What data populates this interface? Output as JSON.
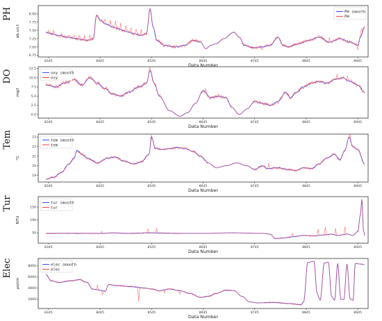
{
  "chart_data": [
    {
      "type": "line",
      "panel_label": "PH",
      "xlabel": "Data Number",
      "ylabel": "ab.un.t",
      "xlim": [
        8325,
        8965
      ],
      "ylim": [
        6.7,
        8.25
      ],
      "xticks": [
        8345,
        8445,
        8545,
        8645,
        8745,
        8845,
        8945
      ],
      "yticks": [
        6.75,
        7.0,
        7.25,
        7.5,
        7.75,
        8.0
      ],
      "ytick_labels": [
        "6.75",
        "7.00",
        "7.25",
        "7.50",
        "7.75",
        "8.00"
      ],
      "legend_position": "top-right",
      "series": [
        {
          "name": "PH smooth",
          "color": "#3a4dff"
        },
        {
          "name": "PH",
          "color": "#ff4444"
        }
      ],
      "anchors": [
        [
          8340,
          7.45
        ],
        [
          8350,
          7.4
        ],
        [
          8365,
          7.35
        ],
        [
          8380,
          7.3
        ],
        [
          8400,
          7.25
        ],
        [
          8420,
          7.2
        ],
        [
          8432,
          7.25
        ],
        [
          8438,
          7.95
        ],
        [
          8446,
          7.8
        ],
        [
          8455,
          7.7
        ],
        [
          8470,
          7.6
        ],
        [
          8480,
          7.55
        ],
        [
          8490,
          7.5
        ],
        [
          8500,
          7.45
        ],
        [
          8510,
          7.4
        ],
        [
          8525,
          7.35
        ],
        [
          8535,
          7.4
        ],
        [
          8542,
          8.15
        ],
        [
          8548,
          7.6
        ],
        [
          8555,
          7.2
        ],
        [
          8570,
          7.05
        ],
        [
          8590,
          7.0
        ],
        [
          8610,
          7.05
        ],
        [
          8625,
          7.2
        ],
        [
          8640,
          7.15
        ],
        [
          8650,
          6.95
        ],
        [
          8660,
          7.05
        ],
        [
          8670,
          7.1
        ],
        [
          8685,
          7.25
        ],
        [
          8705,
          7.45
        ],
        [
          8715,
          7.3
        ],
        [
          8725,
          7.05
        ],
        [
          8740,
          6.98
        ],
        [
          8760,
          7.0
        ],
        [
          8775,
          7.05
        ],
        [
          8790,
          7.3
        ],
        [
          8800,
          7.05
        ],
        [
          8810,
          7.0
        ],
        [
          8830,
          7.1
        ],
        [
          8850,
          7.2
        ],
        [
          8870,
          7.3
        ],
        [
          8890,
          7.15
        ],
        [
          8910,
          7.25
        ],
        [
          8930,
          7.15
        ],
        [
          8945,
          7.05
        ],
        [
          8950,
          7.3
        ],
        [
          8958,
          7.6
        ]
      ],
      "noise": {
        "amplitude": 0.05,
        "spikes": [
          [
            8345,
            0.12
          ],
          [
            8355,
            0.1
          ],
          [
            8370,
            0.1
          ],
          [
            8385,
            0.1
          ],
          [
            8395,
            0.1
          ],
          [
            8405,
            0.12
          ],
          [
            8415,
            0.12
          ],
          [
            8425,
            0.1
          ],
          [
            8455,
            0.15
          ],
          [
            8465,
            0.18
          ],
          [
            8475,
            0.18
          ],
          [
            8485,
            0.18
          ],
          [
            8495,
            0.18
          ],
          [
            8505,
            0.18
          ],
          [
            8515,
            0.18
          ],
          [
            8525,
            0.15
          ],
          [
            8760,
            -0.08
          ],
          [
            8890,
            0.1
          ],
          [
            8945,
            -0.15
          ],
          [
            8952,
            0.25
          ]
        ],
        "quiet": [
          [
            8640,
            8720
          ]
        ]
      }
    },
    {
      "type": "line",
      "panel_label": "DO",
      "xlabel": "Data Number",
      "ylabel": "mg/l",
      "xlim": [
        8325,
        8965
      ],
      "ylim": [
        -1.0,
        13.0
      ],
      "xticks": [
        8345,
        8445,
        8545,
        8645,
        8745,
        8845,
        8945
      ],
      "yticks": [
        0.0,
        2.5,
        5.0,
        7.5,
        10.0,
        12.5
      ],
      "ytick_labels": [
        "0.0",
        "2.5",
        "5.0",
        "7.5",
        "10.0",
        "12.5"
      ],
      "legend_position": "top-left",
      "series": [
        {
          "name": "oxy smooth",
          "color": "#3a4dff"
        },
        {
          "name": "oxy",
          "color": "#ff4444"
        }
      ],
      "anchors": [
        [
          8340,
          8.0
        ],
        [
          8360,
          7.5
        ],
        [
          8375,
          8.5
        ],
        [
          8395,
          9.5
        ],
        [
          8410,
          8.0
        ],
        [
          8425,
          10.0
        ],
        [
          8440,
          8.5
        ],
        [
          8455,
          7.0
        ],
        [
          8470,
          5.5
        ],
        [
          8485,
          5.0
        ],
        [
          8500,
          6.0
        ],
        [
          8520,
          7.5
        ],
        [
          8535,
          8.5
        ],
        [
          8542,
          12.0
        ],
        [
          8550,
          8.5
        ],
        [
          8560,
          5.0
        ],
        [
          8580,
          1.0
        ],
        [
          8600,
          -0.5
        ],
        [
          8615,
          0.5
        ],
        [
          8630,
          3.0
        ],
        [
          8645,
          6.5
        ],
        [
          8660,
          4.5
        ],
        [
          8675,
          5.0
        ],
        [
          8690,
          4.5
        ],
        [
          8700,
          2.0
        ],
        [
          8715,
          0.0
        ],
        [
          8730,
          1.5
        ],
        [
          8745,
          3.5
        ],
        [
          8760,
          3.0
        ],
        [
          8775,
          2.5
        ],
        [
          8790,
          3.5
        ],
        [
          8805,
          6.0
        ],
        [
          8815,
          4.5
        ],
        [
          8825,
          6.0
        ],
        [
          8840,
          7.5
        ],
        [
          8855,
          8.5
        ],
        [
          8870,
          9.0
        ],
        [
          8885,
          8.5
        ],
        [
          8900,
          9.5
        ],
        [
          8915,
          10.0
        ],
        [
          8930,
          9.0
        ],
        [
          8945,
          8.0
        ],
        [
          8958,
          6.0
        ]
      ],
      "noise": {
        "amplitude": 0.5,
        "spikes": [
          [
            8541,
            1.5
          ],
          [
            8650,
            1.2
          ],
          [
            8905,
            1.0
          ],
          [
            8925,
            0.8
          ]
        ],
        "quiet": [
          [
            8565,
            8640
          ],
          [
            8700,
            8740
          ]
        ]
      }
    },
    {
      "type": "line",
      "panel_label": "Tem",
      "xlabel": "Data Number",
      "ylabel": "°C",
      "xlim": [
        8325,
        8965
      ],
      "ylim": [
        18.3,
        23.3
      ],
      "xticks": [
        8345,
        8445,
        8545,
        8645,
        8745,
        8845,
        8945
      ],
      "yticks": [
        19,
        20,
        21,
        22,
        23
      ],
      "ytick_labels": [
        "19",
        "20",
        "21",
        "22",
        "23"
      ],
      "legend_position": "top-left",
      "series": [
        {
          "name": "tem smooth",
          "color": "#3a4dff"
        },
        {
          "name": "tem",
          "color": "#ff4444"
        }
      ],
      "anchors": [
        [
          8340,
          18.6
        ],
        [
          8355,
          18.8
        ],
        [
          8370,
          19.3
        ],
        [
          8385,
          20.2
        ],
        [
          8395,
          20.8
        ],
        [
          8400,
          21.6
        ],
        [
          8410,
          21.2
        ],
        [
          8420,
          20.8
        ],
        [
          8440,
          20.3
        ],
        [
          8460,
          20.8
        ],
        [
          8475,
          20.9
        ],
        [
          8490,
          20.5
        ],
        [
          8510,
          20.2
        ],
        [
          8525,
          20.4
        ],
        [
          8540,
          21.2
        ],
        [
          8545,
          23.0
        ],
        [
          8552,
          21.8
        ],
        [
          8565,
          21.7
        ],
        [
          8580,
          21.8
        ],
        [
          8595,
          21.9
        ],
        [
          8610,
          21.8
        ],
        [
          8625,
          21.5
        ],
        [
          8640,
          21.0
        ],
        [
          8655,
          20.3
        ],
        [
          8670,
          19.8
        ],
        [
          8690,
          20.0
        ],
        [
          8710,
          20.3
        ],
        [
          8730,
          20.0
        ],
        [
          8745,
          19.6
        ],
        [
          8760,
          20.0
        ],
        [
          8770,
          19.7
        ],
        [
          8790,
          19.8
        ],
        [
          8810,
          19.6
        ],
        [
          8825,
          19.5
        ],
        [
          8840,
          19.8
        ],
        [
          8855,
          19.7
        ],
        [
          8870,
          20.2
        ],
        [
          8885,
          20.8
        ],
        [
          8900,
          21.2
        ],
        [
          8910,
          20.6
        ],
        [
          8920,
          21.6
        ],
        [
          8928,
          23.0
        ],
        [
          8935,
          22.0
        ],
        [
          8945,
          21.7
        ],
        [
          8958,
          20.2
        ]
      ],
      "noise": {
        "amplitude": 0.12,
        "spikes": [
          [
            8544,
            0.4
          ],
          [
            8772,
            0.5
          ],
          [
            8930,
            0.4
          ]
        ],
        "quiet": [
          [
            8655,
            8740
          ]
        ]
      }
    },
    {
      "type": "line",
      "panel_label": "Tur",
      "xlabel": "Data Number",
      "ylabel": "NTU",
      "xlim": [
        8325,
        8965
      ],
      "ylim": [
        10,
        190
      ],
      "xticks": [
        8345,
        8445,
        8545,
        8645,
        8745,
        8845,
        8945
      ],
      "yticks": [
        50,
        100,
        150
      ],
      "ytick_labels": [
        "50",
        "100",
        "150"
      ],
      "legend_position": "top-left",
      "series": [
        {
          "name": "tur smooth",
          "color": "#3a4dff"
        },
        {
          "name": "tur",
          "color": "#ff4444"
        }
      ],
      "anchors": [
        [
          8340,
          48
        ],
        [
          8400,
          48
        ],
        [
          8450,
          48
        ],
        [
          8470,
          50
        ],
        [
          8500,
          48
        ],
        [
          8540,
          50
        ],
        [
          8600,
          48
        ],
        [
          8650,
          48
        ],
        [
          8700,
          50
        ],
        [
          8760,
          48
        ],
        [
          8775,
          45
        ],
        [
          8785,
          28
        ],
        [
          8800,
          30
        ],
        [
          8820,
          35
        ],
        [
          8840,
          40
        ],
        [
          8860,
          38
        ],
        [
          8880,
          42
        ],
        [
          8895,
          45
        ],
        [
          8905,
          40
        ],
        [
          8925,
          45
        ],
        [
          8935,
          40
        ],
        [
          8945,
          55
        ],
        [
          8950,
          120
        ],
        [
          8953,
          180
        ],
        [
          8956,
          60
        ],
        [
          8960,
          20
        ]
      ],
      "noise": {
        "amplitude": 2.0,
        "spikes": [
          [
            8448,
            8
          ],
          [
            8538,
            14
          ],
          [
            8555,
            20
          ],
          [
            8818,
            12
          ],
          [
            8868,
            25
          ],
          [
            8882,
            30
          ],
          [
            8902,
            28
          ],
          [
            8920,
            30
          ]
        ],
        "quiet": [
          [
            8600,
            8770
          ]
        ]
      }
    },
    {
      "type": "line",
      "panel_label": "Elec",
      "xlabel": "Data Number",
      "ylabel": "μs/cm",
      "xlim": [
        8325,
        8965
      ],
      "ylim": [
        300,
        9300
      ],
      "xticks": [
        8345,
        8445,
        8545,
        8645,
        8745,
        8845,
        8945
      ],
      "yticks": [
        2000,
        4000,
        6000,
        8000
      ],
      "ytick_labels": [
        "2000",
        "4000",
        "6000",
        "8000"
      ],
      "legend_position": "top-left",
      "series": [
        {
          "name": "elec smooth",
          "color": "#3a4dff"
        },
        {
          "name": "elec",
          "color": "#ff4444"
        }
      ],
      "anchors": [
        [
          8340,
          6400
        ],
        [
          8350,
          5300
        ],
        [
          8365,
          5000
        ],
        [
          8390,
          5300
        ],
        [
          8405,
          5500
        ],
        [
          8420,
          5000
        ],
        [
          8430,
          3800
        ],
        [
          8445,
          3600
        ],
        [
          8455,
          3400
        ],
        [
          8462,
          4600
        ],
        [
          8480,
          4400
        ],
        [
          8510,
          4200
        ],
        [
          8530,
          4000
        ],
        [
          8545,
          3800
        ],
        [
          8560,
          3500
        ],
        [
          8580,
          3800
        ],
        [
          8600,
          3500
        ],
        [
          8620,
          3000
        ],
        [
          8640,
          2300
        ],
        [
          8655,
          2500
        ],
        [
          8670,
          3000
        ],
        [
          8690,
          3600
        ],
        [
          8705,
          3500
        ],
        [
          8720,
          2500
        ],
        [
          8735,
          1500
        ],
        [
          8750,
          1300
        ],
        [
          8780,
          1400
        ],
        [
          8810,
          1200
        ],
        [
          8835,
          1000
        ],
        [
          8840,
          1500
        ],
        [
          8848,
          8600
        ],
        [
          8860,
          8800
        ],
        [
          8866,
          3000
        ],
        [
          8872,
          1800
        ],
        [
          8880,
          8500
        ],
        [
          8888,
          8600
        ],
        [
          8894,
          2500
        ],
        [
          8900,
          1800
        ],
        [
          8906,
          8400
        ],
        [
          8912,
          2000
        ],
        [
          8918,
          1900
        ],
        [
          8924,
          8300
        ],
        [
          8930,
          2000
        ],
        [
          8936,
          1800
        ],
        [
          8940,
          8400
        ],
        [
          8950,
          8300
        ],
        [
          8958,
          8200
        ]
      ],
      "noise": {
        "amplitude": 120,
        "spikes": [
          [
            8440,
            900
          ],
          [
            8450,
            -700
          ],
          [
            8520,
            -2500
          ],
          [
            8570,
            -600
          ],
          [
            8600,
            -500
          ]
        ],
        "quiet": [
          [
            8700,
            8760
          ],
          [
            8840,
            8958
          ]
        ]
      }
    }
  ]
}
